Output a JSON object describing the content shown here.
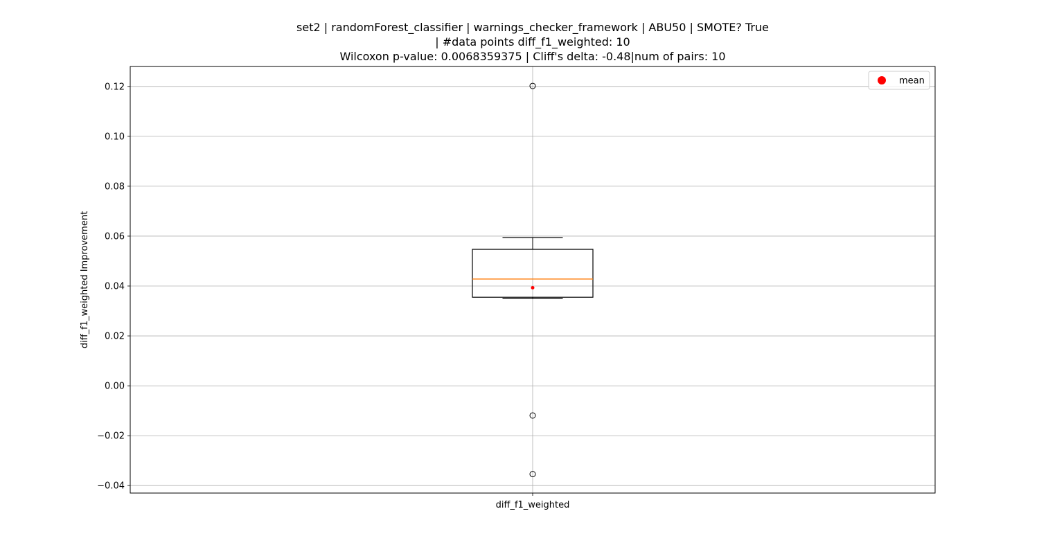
{
  "figure": {
    "title_lines": [
      "set2 | randomForest_classifier | warnings_checker_framework | ABU50 | SMOTE? True",
      "| #data points diff_f1_weighted: 10",
      "Wilcoxon p-value: 0.0068359375 | Cliff's delta: -0.48|num of pairs: 10"
    ]
  },
  "chart_data": {
    "type": "box",
    "title": "set2 | randomForest_classifier | warnings_checker_framework | ABU50 | SMOTE? True\n| #data points diff_f1_weighted: 10\nWilcoxon p-value: 0.0068359375 | Cliff's delta: -0.48|num of pairs: 10",
    "xlabel": "",
    "ylabel": "diff_f1_weighted Improvement",
    "categories": [
      "diff_f1_weighted"
    ],
    "ylim": [
      -0.043,
      0.128
    ],
    "yticks": [
      -0.04,
      -0.02,
      0.0,
      0.02,
      0.04,
      0.06,
      0.08,
      0.1,
      0.12
    ],
    "ytick_labels": [
      "−0.04",
      "−0.02",
      "0.00",
      "0.02",
      "0.04",
      "0.06",
      "0.08",
      "0.10",
      "0.12"
    ],
    "grid": true,
    "legend": {
      "position": "top-right",
      "entries": [
        {
          "label": "mean",
          "color": "#ff0000"
        }
      ]
    },
    "boxes": [
      {
        "name": "diff_f1_weighted",
        "whisker_low": 0.035,
        "q1": 0.0355,
        "median": 0.0428,
        "q3": 0.0547,
        "whisker_high": 0.0594,
        "mean": 0.0393,
        "outliers": [
          0.1202,
          -0.0119,
          -0.0354
        ]
      }
    ],
    "colors": {
      "box": "#000000",
      "median": "#ff7f0e",
      "mean": "#ff0000",
      "grid": "#b0b0b0"
    }
  }
}
